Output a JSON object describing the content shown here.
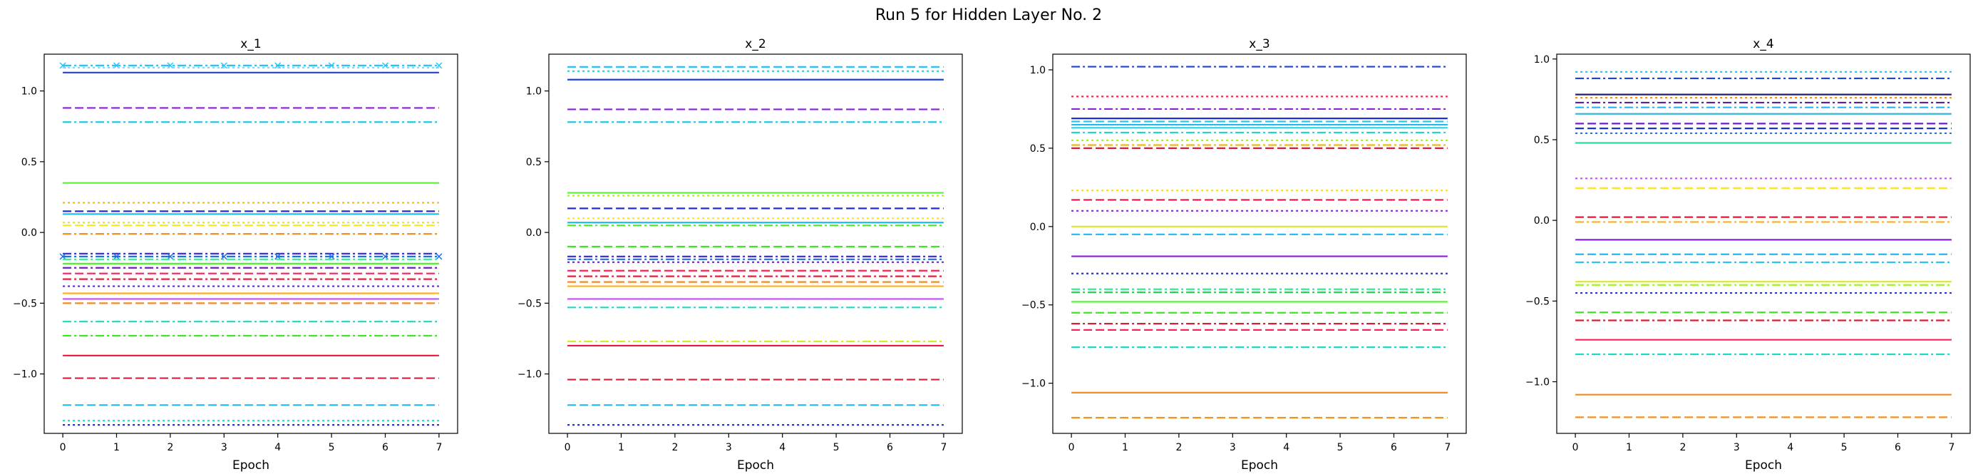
{
  "figure_title": "Run 5 for Hidden Layer No. 2",
  "chart_data": [
    {
      "type": "line",
      "title": "x_1",
      "xlabel": "Epoch",
      "ylabel": "",
      "x": [
        0,
        1,
        2,
        3,
        4,
        5,
        6,
        7
      ],
      "x_ticks": [
        0,
        1,
        2,
        3,
        4,
        5,
        6,
        7
      ],
      "y_ticks": [
        -1.0,
        -0.5,
        0.0,
        0.5,
        1.0
      ],
      "ylim": [
        -1.42,
        1.26
      ],
      "grid": false,
      "series": [
        {
          "value": 1.18,
          "color": "#29c4f5",
          "style": "dashdotx"
        },
        {
          "value": 1.165,
          "color": "#7fd6ff",
          "style": "dotted"
        },
        {
          "value": 1.13,
          "color": "#1f3fe0",
          "style": "solid"
        },
        {
          "value": 0.88,
          "color": "#8b1fe0",
          "style": "dashed"
        },
        {
          "value": 0.78,
          "color": "#1fc8e8",
          "style": "dashdot"
        },
        {
          "value": 0.35,
          "color": "#5df43a",
          "style": "solid"
        },
        {
          "value": 0.21,
          "color": "#f5b21f",
          "style": "dotted"
        },
        {
          "value": 0.15,
          "color": "#1f2fd0",
          "style": "dashed"
        },
        {
          "value": 0.13,
          "color": "#1fb8f0",
          "style": "solid"
        },
        {
          "value": 0.07,
          "color": "#d8e82a",
          "style": "dotted"
        },
        {
          "value": 0.05,
          "color": "#ffe41f",
          "style": "dashed"
        },
        {
          "value": -0.01,
          "color": "#f5901f",
          "style": "dashdot"
        },
        {
          "value": -0.15,
          "color": "#3f2fe0",
          "style": "dashdot"
        },
        {
          "value": -0.17,
          "color": "#1f6fe0",
          "style": "dashdotx"
        },
        {
          "value": -0.19,
          "color": "#2ff08a",
          "style": "dashdot"
        },
        {
          "value": -0.22,
          "color": "#44f51f",
          "style": "solid"
        },
        {
          "value": -0.25,
          "color": "#6d1fd0",
          "style": "dashdot"
        },
        {
          "value": -0.29,
          "color": "#ff1f5a",
          "style": "dashed"
        },
        {
          "value": -0.33,
          "color": "#e81f3a",
          "style": "dashdot"
        },
        {
          "value": -0.38,
          "color": "#5a1fe0",
          "style": "dotted"
        },
        {
          "value": -0.43,
          "color": "#ffb01f",
          "style": "solid"
        },
        {
          "value": -0.47,
          "color": "#c44bff",
          "style": "solid"
        },
        {
          "value": -0.5,
          "color": "#f58a1f",
          "style": "dashed"
        },
        {
          "value": -0.63,
          "color": "#1fd8c0",
          "style": "dashdot"
        },
        {
          "value": -0.73,
          "color": "#3ae81f",
          "style": "dashdot"
        },
        {
          "value": -0.87,
          "color": "#e8163a",
          "style": "solid"
        },
        {
          "value": -1.03,
          "color": "#d81f3a",
          "style": "dashed"
        },
        {
          "value": -1.22,
          "color": "#1fb8f0",
          "style": "dashed"
        },
        {
          "value": -1.33,
          "color": "#1fe0c0",
          "style": "dotted"
        },
        {
          "value": -1.36,
          "color": "#1f2fd0",
          "style": "dotted"
        }
      ]
    },
    {
      "type": "line",
      "title": "x_2",
      "xlabel": "Epoch",
      "ylabel": "",
      "x": [
        0,
        1,
        2,
        3,
        4,
        5,
        6,
        7
      ],
      "x_ticks": [
        0,
        1,
        2,
        3,
        4,
        5,
        6,
        7
      ],
      "y_ticks": [
        -1.0,
        -0.5,
        0.0,
        0.5,
        1.0
      ],
      "ylim": [
        -1.42,
        1.26
      ],
      "grid": false,
      "series": [
        {
          "value": 1.17,
          "color": "#29c4f5",
          "style": "dashed"
        },
        {
          "value": 1.14,
          "color": "#1fd8c0",
          "style": "dotted"
        },
        {
          "value": 1.08,
          "color": "#1f3fe0",
          "style": "solid"
        },
        {
          "value": 0.87,
          "color": "#8b1fe0",
          "style": "dashed"
        },
        {
          "value": 0.78,
          "color": "#1fc8e8",
          "style": "dashdot"
        },
        {
          "value": 0.28,
          "color": "#5df43a",
          "style": "solid"
        },
        {
          "value": 0.26,
          "color": "#9ef51f",
          "style": "dotted"
        },
        {
          "value": 0.17,
          "color": "#1f2fd0",
          "style": "dashed"
        },
        {
          "value": 0.1,
          "color": "#ffe41f",
          "style": "dotted"
        },
        {
          "value": 0.07,
          "color": "#1fb8f0",
          "style": "solid"
        },
        {
          "value": 0.05,
          "color": "#44f51f",
          "style": "dashdot"
        },
        {
          "value": -0.1,
          "color": "#3ae81f",
          "style": "dashed"
        },
        {
          "value": -0.17,
          "color": "#3f2fe0",
          "style": "dashdot"
        },
        {
          "value": -0.19,
          "color": "#1f6fe0",
          "style": "dashdot"
        },
        {
          "value": -0.21,
          "color": "#6d1fd0",
          "style": "dotted"
        },
        {
          "value": -0.27,
          "color": "#ff1f5a",
          "style": "dashed"
        },
        {
          "value": -0.31,
          "color": "#e81f3a",
          "style": "dashdot"
        },
        {
          "value": -0.35,
          "color": "#f58a1f",
          "style": "dashed"
        },
        {
          "value": -0.38,
          "color": "#ffb01f",
          "style": "solid"
        },
        {
          "value": -0.47,
          "color": "#c44bff",
          "style": "solid"
        },
        {
          "value": -0.53,
          "color": "#1fd8c0",
          "style": "dashdot"
        },
        {
          "value": -0.77,
          "color": "#d8e82a",
          "style": "dashdot"
        },
        {
          "value": -0.8,
          "color": "#e8163a",
          "style": "solid"
        },
        {
          "value": -1.04,
          "color": "#d81f3a",
          "style": "dashed"
        },
        {
          "value": -1.22,
          "color": "#1fb8f0",
          "style": "dashed"
        },
        {
          "value": -1.36,
          "color": "#1f2fd0",
          "style": "dotted"
        }
      ]
    },
    {
      "type": "line",
      "title": "x_3",
      "xlabel": "Epoch",
      "ylabel": "",
      "x": [
        0,
        1,
        2,
        3,
        4,
        5,
        6,
        7
      ],
      "x_ticks": [
        0,
        1,
        2,
        3,
        4,
        5,
        6,
        7
      ],
      "y_ticks": [
        -1.0,
        -0.5,
        0.0,
        0.5,
        1.0
      ],
      "ylim": [
        -1.32,
        1.1
      ],
      "grid": false,
      "series": [
        {
          "value": 1.02,
          "color": "#1f3fe0",
          "style": "dashdot"
        },
        {
          "value": 0.83,
          "color": "#ff1f3a",
          "style": "dotted"
        },
        {
          "value": 0.75,
          "color": "#8b1fe0",
          "style": "dashdot"
        },
        {
          "value": 0.69,
          "color": "#1f2fd0",
          "style": "solid"
        },
        {
          "value": 0.67,
          "color": "#29c4f5",
          "style": "dashed"
        },
        {
          "value": 0.65,
          "color": "#1fb8f0",
          "style": "solid"
        },
        {
          "value": 0.63,
          "color": "#1fd8e8",
          "style": "solid"
        },
        {
          "value": 0.6,
          "color": "#1fd8c0",
          "style": "dashdot"
        },
        {
          "value": 0.55,
          "color": "#9ef51f",
          "style": "dotted"
        },
        {
          "value": 0.52,
          "color": "#f5b21f",
          "style": "dashdot"
        },
        {
          "value": 0.5,
          "color": "#d81f3a",
          "style": "dashed"
        },
        {
          "value": 0.23,
          "color": "#ffd71f",
          "style": "dotted"
        },
        {
          "value": 0.17,
          "color": "#e8163a",
          "style": "dashed"
        },
        {
          "value": 0.1,
          "color": "#8b1fe0",
          "style": "dotted"
        },
        {
          "value": 0.0,
          "color": "#d8e82a",
          "style": "solid"
        },
        {
          "value": -0.05,
          "color": "#1fb8f0",
          "style": "dashed"
        },
        {
          "value": -0.19,
          "color": "#8b1fe0",
          "style": "solid"
        },
        {
          "value": -0.3,
          "color": "#1f2fd0",
          "style": "dotted"
        },
        {
          "value": -0.4,
          "color": "#2ff08a",
          "style": "dashdot"
        },
        {
          "value": -0.42,
          "color": "#1fd850",
          "style": "dashdot"
        },
        {
          "value": -0.48,
          "color": "#5df43a",
          "style": "solid"
        },
        {
          "value": -0.55,
          "color": "#3ae81f",
          "style": "dashed"
        },
        {
          "value": -0.62,
          "color": "#d81f3a",
          "style": "dashdot"
        },
        {
          "value": -0.66,
          "color": "#ff1f5a",
          "style": "dashed"
        },
        {
          "value": -0.77,
          "color": "#1fd8c0",
          "style": "dashdot"
        },
        {
          "value": -1.06,
          "color": "#f58a1f",
          "style": "solid"
        },
        {
          "value": -1.22,
          "color": "#f5901f",
          "style": "dashed"
        }
      ]
    },
    {
      "type": "line",
      "title": "x_4",
      "xlabel": "Epoch",
      "ylabel": "",
      "x": [
        0,
        1,
        2,
        3,
        4,
        5,
        6,
        7
      ],
      "x_ticks": [
        0,
        1,
        2,
        3,
        4,
        5,
        6,
        7
      ],
      "y_ticks": [
        -1.0,
        -0.5,
        0.0,
        0.5,
        1.0
      ],
      "ylim": [
        -1.32,
        1.03
      ],
      "grid": false,
      "series": [
        {
          "value": 0.92,
          "color": "#29c4f5",
          "style": "dotted"
        },
        {
          "value": 0.88,
          "color": "#1f3fe0",
          "style": "dashdot"
        },
        {
          "value": 0.78,
          "color": "#1f1f7a",
          "style": "solid"
        },
        {
          "value": 0.76,
          "color": "#f5901f",
          "style": "dotted"
        },
        {
          "value": 0.73,
          "color": "#5a1fa0",
          "style": "dashdot"
        },
        {
          "value": 0.7,
          "color": "#1fb8f0",
          "style": "dashdot"
        },
        {
          "value": 0.66,
          "color": "#3ab8d8",
          "style": "solid"
        },
        {
          "value": 0.6,
          "color": "#6d1fd0",
          "style": "dashed"
        },
        {
          "value": 0.57,
          "color": "#1f2fd0",
          "style": "dashed"
        },
        {
          "value": 0.54,
          "color": "#1f6fe0",
          "style": "dotted"
        },
        {
          "value": 0.48,
          "color": "#1fe0a0",
          "style": "solid"
        },
        {
          "value": 0.26,
          "color": "#c44bff",
          "style": "dotted"
        },
        {
          "value": 0.2,
          "color": "#ffe41f",
          "style": "dashed"
        },
        {
          "value": 0.02,
          "color": "#e8163a",
          "style": "dashed"
        },
        {
          "value": -0.01,
          "color": "#f5b21f",
          "style": "dashdot"
        },
        {
          "value": -0.12,
          "color": "#8b1fe0",
          "style": "solid"
        },
        {
          "value": -0.21,
          "color": "#1fb8f0",
          "style": "dashed"
        },
        {
          "value": -0.26,
          "color": "#29c4f5",
          "style": "dashdot"
        },
        {
          "value": -0.38,
          "color": "#d8e82a",
          "style": "solid"
        },
        {
          "value": -0.4,
          "color": "#9ef51f",
          "style": "dashdot"
        },
        {
          "value": -0.45,
          "color": "#1f2fd0",
          "style": "dotted"
        },
        {
          "value": -0.57,
          "color": "#3ae81f",
          "style": "dashed"
        },
        {
          "value": -0.62,
          "color": "#d81f3a",
          "style": "dashdot"
        },
        {
          "value": -0.74,
          "color": "#ff1f5a",
          "style": "solid"
        },
        {
          "value": -0.83,
          "color": "#1fd8c0",
          "style": "dashdot"
        },
        {
          "value": -1.08,
          "color": "#f58a1f",
          "style": "solid"
        },
        {
          "value": -1.22,
          "color": "#f5901f",
          "style": "dashed"
        }
      ]
    }
  ]
}
